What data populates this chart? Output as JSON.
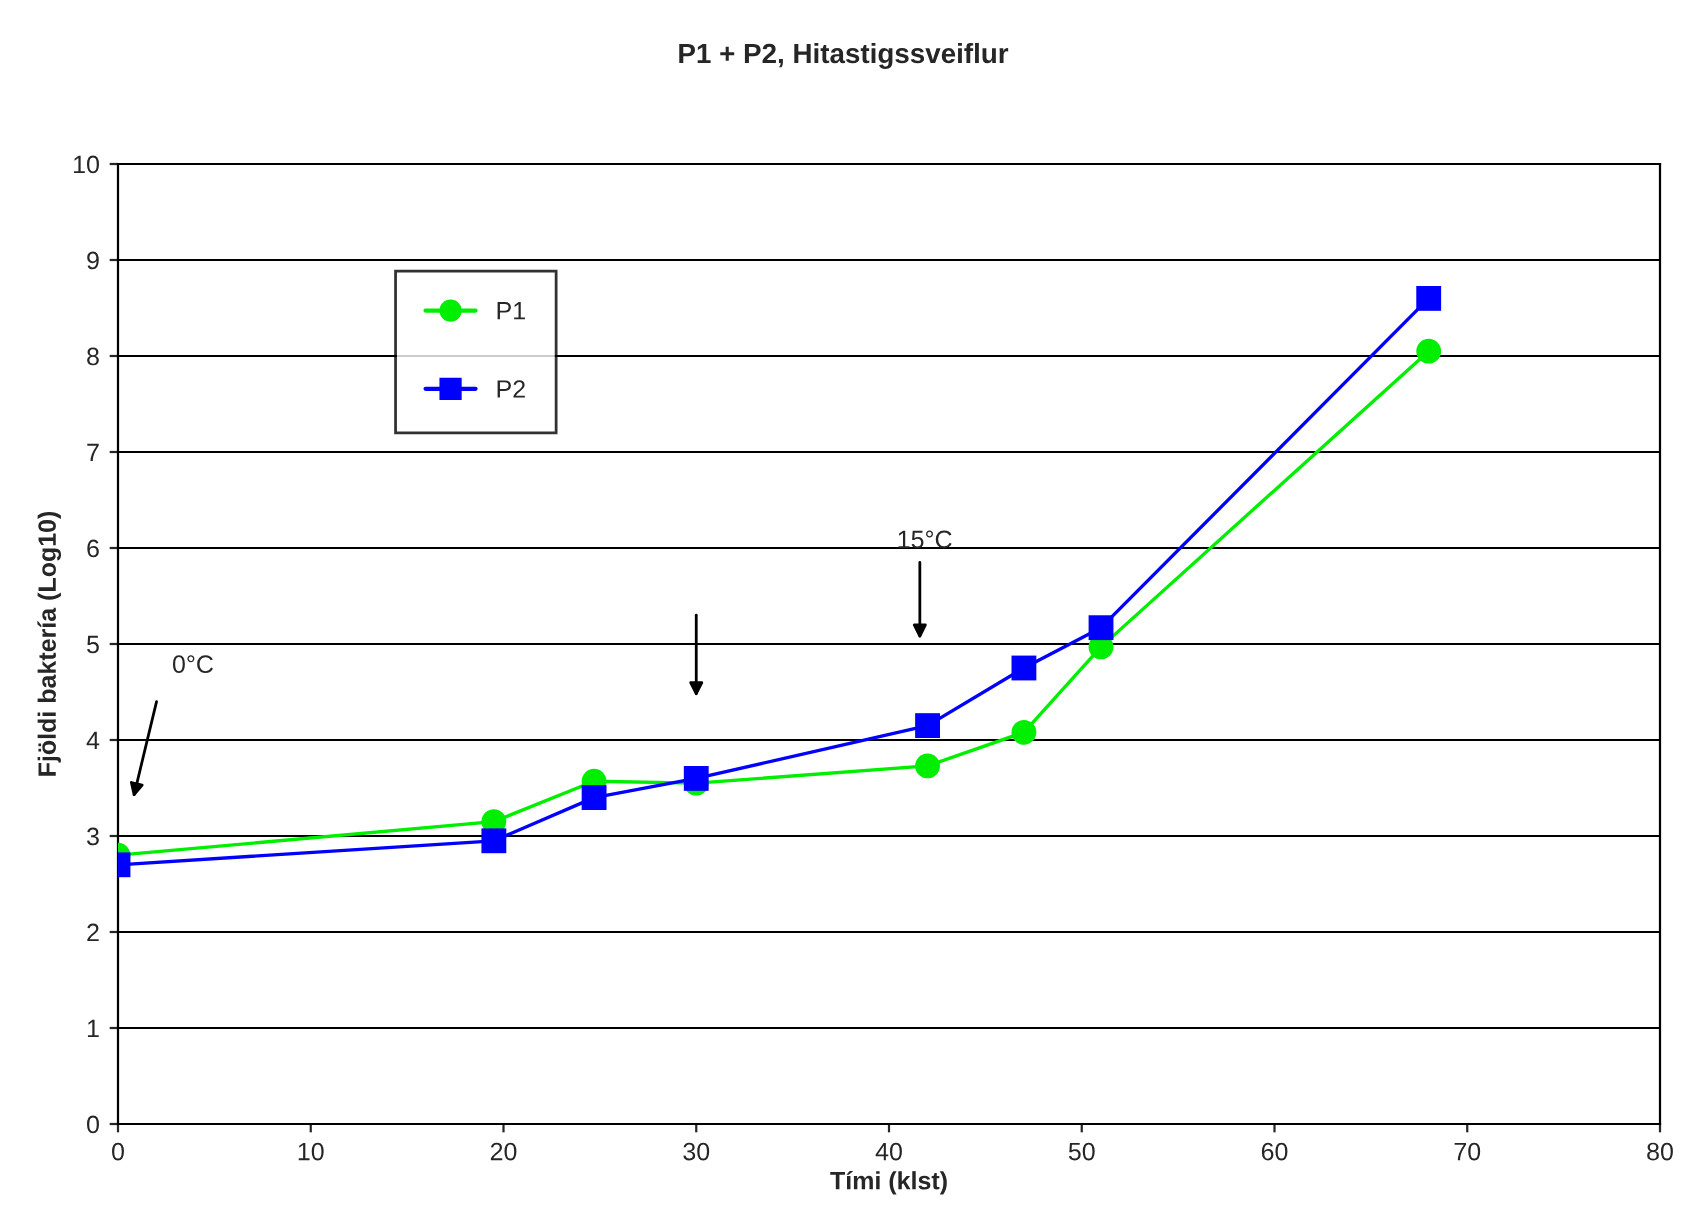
{
  "chart_data": {
    "type": "line",
    "title": "P1 + P2, Hitastigssveiflur",
    "xlabel": "Tími (klst)",
    "ylabel": "Fjöldi baktería (Log10)",
    "series": [
      {
        "name": "P1",
        "color": "#00ee00",
        "marker": "circle",
        "x": [
          0,
          19.5,
          24.7,
          30,
          42,
          47,
          51,
          68
        ],
        "values": [
          2.8,
          3.15,
          3.57,
          3.55,
          3.73,
          4.08,
          4.97,
          8.05
        ]
      },
      {
        "name": "P2",
        "color": "#0000ff",
        "marker": "square",
        "x": [
          0,
          19.5,
          24.7,
          30,
          42,
          47,
          51,
          68
        ],
        "values": [
          2.7,
          2.95,
          3.4,
          3.6,
          4.15,
          4.75,
          5.17,
          8.6
        ]
      }
    ],
    "annotations": [
      "0°C",
      "15°C"
    ],
    "xlim": [
      0,
      80
    ],
    "xticks": [
      0,
      10,
      20,
      30,
      40,
      50,
      60,
      70,
      80
    ],
    "ylim": [
      0,
      10
    ],
    "yticks": [
      0,
      1,
      2,
      3,
      4,
      5,
      6,
      7,
      8,
      9,
      10
    ],
    "grid": "y",
    "legend": "top left",
    "line_style": "solid"
  }
}
